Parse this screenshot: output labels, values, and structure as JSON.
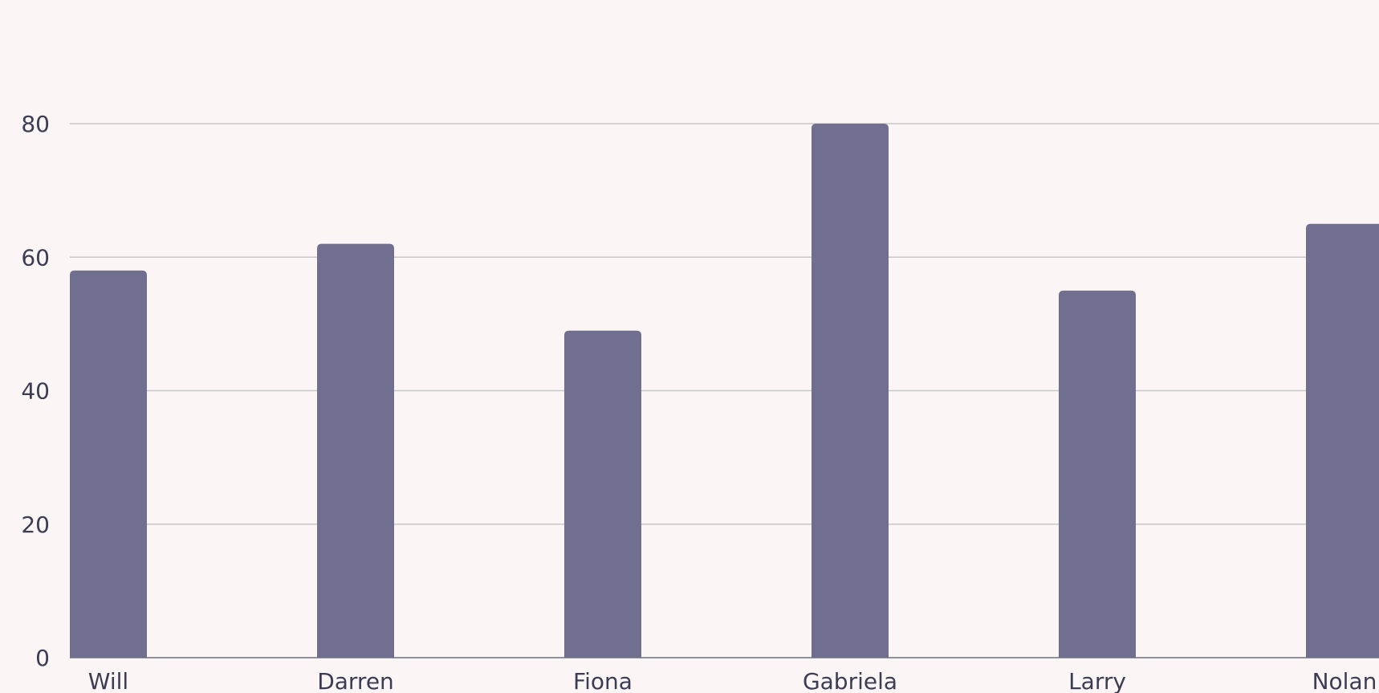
{
  "chart_data": {
    "type": "bar",
    "title": "",
    "xlabel": "",
    "ylabel": "",
    "categories": [
      "Will",
      "Darren",
      "Fiona",
      "Gabriela",
      "Larry",
      "Nolan"
    ],
    "values": [
      58,
      62,
      49,
      80,
      55,
      65
    ],
    "ylim": [
      0,
      80
    ],
    "yticks": [
      0,
      20,
      40,
      60,
      80
    ],
    "grid": true,
    "bar_color": "#706f90",
    "background_color": "#fbf5f5",
    "grid_color": "#c9c6c8",
    "text_color": "#3c3c52"
  }
}
